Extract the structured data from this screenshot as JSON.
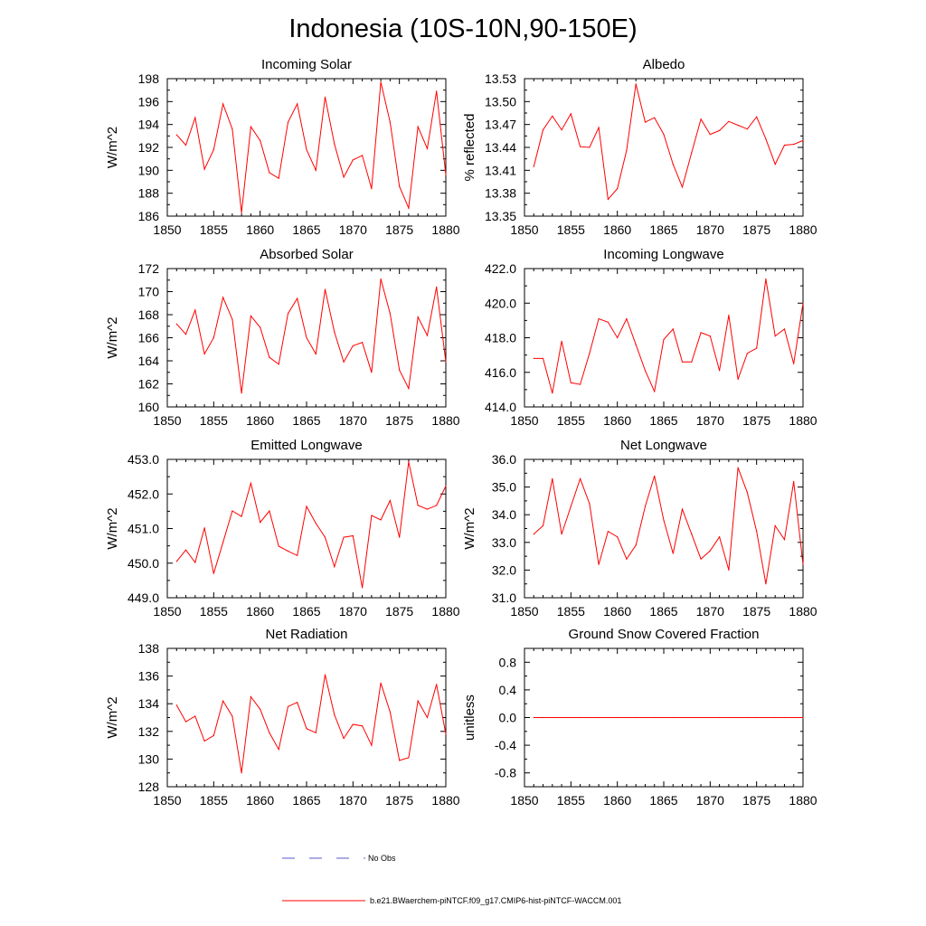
{
  "figure_title": "Indonesia (10S-10N,90-150E)",
  "legend": {
    "obs_label": "No Obs",
    "obs_color": "#5a5ad0",
    "model_label": "b.e21.BWaerchem-piNTCF.f09_g17.CMIP6-hist-piNTCF-WACCM.001",
    "model_color": "#ff0000"
  },
  "chart_data": [
    {
      "type": "line",
      "title": "Incoming Solar",
      "ylabel": "W/m^2",
      "xlim": [
        1850,
        1880
      ],
      "ylim": [
        186,
        198
      ],
      "xticks": [
        "1850",
        "1855",
        "1860",
        "1865",
        "1870",
        "1875",
        "1880"
      ],
      "yticks": [
        "186",
        "188",
        "190",
        "192",
        "194",
        "196",
        "198"
      ],
      "series": [
        {
          "color": "#ff0000",
          "x": [
            1851,
            1852,
            1853,
            1854,
            1855,
            1856,
            1857,
            1858,
            1859,
            1860,
            1861,
            1862,
            1863,
            1864,
            1865,
            1866,
            1867,
            1868,
            1869,
            1870,
            1871,
            1872,
            1873,
            1874,
            1875,
            1876,
            1877,
            1878,
            1879,
            1880
          ],
          "values": [
            193.1,
            192.2,
            194.6,
            190.1,
            191.8,
            195.8,
            193.6,
            186.3,
            193.8,
            192.6,
            189.8,
            189.3,
            194.2,
            195.8,
            191.8,
            190.0,
            196.4,
            192.3,
            189.4,
            190.9,
            191.3,
            188.4,
            197.7,
            194.2,
            188.6,
            186.7,
            193.8,
            191.9,
            196.9,
            189.6
          ]
        }
      ]
    },
    {
      "type": "line",
      "title": "Albedo",
      "ylabel": "% reflected",
      "xlim": [
        1850,
        1880
      ],
      "ylim": [
        13.35,
        13.53
      ],
      "xticks": [
        "1850",
        "1855",
        "1860",
        "1865",
        "1870",
        "1875",
        "1880"
      ],
      "yticks": [
        "13.35",
        "13.38",
        "13.41",
        "13.44",
        "13.47",
        "13.50",
        "13.53"
      ],
      "series": [
        {
          "color": "#ff0000",
          "x": [
            1851,
            1852,
            1853,
            1854,
            1855,
            1856,
            1857,
            1858,
            1859,
            1860,
            1861,
            1862,
            1863,
            1864,
            1865,
            1866,
            1867,
            1868,
            1869,
            1870,
            1871,
            1872,
            1873,
            1874,
            1875,
            1876,
            1877,
            1878,
            1879,
            1880
          ],
          "values": [
            13.415,
            13.463,
            13.481,
            13.463,
            13.484,
            13.441,
            13.44,
            13.466,
            13.372,
            13.386,
            13.436,
            13.523,
            13.473,
            13.479,
            13.457,
            13.418,
            13.388,
            13.433,
            13.477,
            13.457,
            13.462,
            13.474,
            13.469,
            13.464,
            13.48,
            13.451,
            13.418,
            13.443,
            13.444,
            13.449
          ]
        }
      ]
    },
    {
      "type": "line",
      "title": "Absorbed Solar",
      "ylabel": "W/m^2",
      "xlim": [
        1850,
        1880
      ],
      "ylim": [
        160,
        172
      ],
      "xticks": [
        "1850",
        "1855",
        "1860",
        "1865",
        "1870",
        "1875",
        "1880"
      ],
      "yticks": [
        "160",
        "162",
        "164",
        "166",
        "168",
        "170",
        "172"
      ],
      "series": [
        {
          "color": "#ff0000",
          "x": [
            1851,
            1852,
            1853,
            1854,
            1855,
            1856,
            1857,
            1858,
            1859,
            1860,
            1861,
            1862,
            1863,
            1864,
            1865,
            1866,
            1867,
            1868,
            1869,
            1870,
            1871,
            1872,
            1873,
            1874,
            1875,
            1876,
            1877,
            1878,
            1879,
            1880
          ],
          "values": [
            167.2,
            166.3,
            168.4,
            164.6,
            166.0,
            169.5,
            167.6,
            161.2,
            167.9,
            166.9,
            164.3,
            163.7,
            168.1,
            169.4,
            166.0,
            164.6,
            170.2,
            166.5,
            163.9,
            165.3,
            165.6,
            163.0,
            171.1,
            168.1,
            163.2,
            161.6,
            167.8,
            166.2,
            170.4,
            163.9
          ]
        }
      ]
    },
    {
      "type": "line",
      "title": "Incoming Longwave",
      "ylabel": "",
      "xlim": [
        1850,
        1880
      ],
      "ylim": [
        414.0,
        422.0
      ],
      "xticks": [
        "1850",
        "1855",
        "1860",
        "1865",
        "1870",
        "1875",
        "1880"
      ],
      "yticks": [
        "414.0",
        "416.0",
        "418.0",
        "420.0",
        "422.0"
      ],
      "series": [
        {
          "color": "#ff0000",
          "x": [
            1851,
            1852,
            1853,
            1854,
            1855,
            1856,
            1857,
            1858,
            1859,
            1860,
            1861,
            1862,
            1863,
            1864,
            1865,
            1866,
            1867,
            1868,
            1869,
            1870,
            1871,
            1872,
            1873,
            1874,
            1875,
            1876,
            1877,
            1878,
            1879,
            1880
          ],
          "values": [
            416.8,
            416.8,
            414.8,
            417.8,
            415.4,
            415.3,
            417.1,
            419.1,
            418.9,
            418.0,
            419.1,
            417.6,
            416.1,
            414.9,
            417.9,
            418.5,
            416.6,
            416.6,
            418.3,
            418.1,
            416.1,
            419.3,
            415.6,
            417.1,
            417.4,
            421.4,
            418.1,
            418.5,
            416.5,
            420.0
          ]
        }
      ]
    },
    {
      "type": "line",
      "title": "Emitted Longwave",
      "ylabel": "W/m^2",
      "xlim": [
        1850,
        1880
      ],
      "ylim": [
        449.0,
        453.0
      ],
      "xticks": [
        "1850",
        "1855",
        "1860",
        "1865",
        "1870",
        "1875",
        "1880"
      ],
      "yticks": [
        "449.0",
        "450.0",
        "451.0",
        "452.0",
        "453.0"
      ],
      "series": [
        {
          "color": "#ff0000",
          "x": [
            1851,
            1852,
            1853,
            1854,
            1855,
            1856,
            1857,
            1858,
            1859,
            1860,
            1861,
            1862,
            1863,
            1864,
            1865,
            1866,
            1867,
            1868,
            1869,
            1870,
            1871,
            1872,
            1873,
            1874,
            1875,
            1876,
            1877,
            1878,
            1879,
            1880
          ],
          "values": [
            450.05,
            450.38,
            450.02,
            451.02,
            449.7,
            450.6,
            451.51,
            451.35,
            452.31,
            451.18,
            451.51,
            450.49,
            450.35,
            450.22,
            451.64,
            451.15,
            450.75,
            449.9,
            450.75,
            450.79,
            449.29,
            451.38,
            451.25,
            451.81,
            450.75,
            452.93,
            451.67,
            451.56,
            451.67,
            452.23
          ]
        }
      ]
    },
    {
      "type": "line",
      "title": "Net Longwave",
      "ylabel": "W/m^2",
      "xlim": [
        1850,
        1880
      ],
      "ylim": [
        31.0,
        36.0
      ],
      "xticks": [
        "1850",
        "1855",
        "1860",
        "1865",
        "1870",
        "1875",
        "1880"
      ],
      "yticks": [
        "31.0",
        "32.0",
        "33.0",
        "34.0",
        "35.0",
        "36.0"
      ],
      "series": [
        {
          "color": "#ff0000",
          "x": [
            1851,
            1852,
            1853,
            1854,
            1855,
            1856,
            1857,
            1858,
            1859,
            1860,
            1861,
            1862,
            1863,
            1864,
            1865,
            1866,
            1867,
            1868,
            1869,
            1870,
            1871,
            1872,
            1873,
            1874,
            1875,
            1876,
            1877,
            1878,
            1879,
            1880
          ],
          "values": [
            33.3,
            33.6,
            35.3,
            33.3,
            34.3,
            35.3,
            34.4,
            32.2,
            33.4,
            33.2,
            32.4,
            32.9,
            34.3,
            35.4,
            33.8,
            32.6,
            34.2,
            33.3,
            32.4,
            32.7,
            33.2,
            32.0,
            35.7,
            34.8,
            33.4,
            31.5,
            33.6,
            33.1,
            35.2,
            32.2
          ]
        }
      ]
    },
    {
      "type": "line",
      "title": "Net Radiation",
      "ylabel": "W/m^2",
      "xlim": [
        1850,
        1880
      ],
      "ylim": [
        128,
        138
      ],
      "xticks": [
        "1850",
        "1855",
        "1860",
        "1865",
        "1870",
        "1875",
        "1880"
      ],
      "yticks": [
        "128",
        "130",
        "132",
        "134",
        "136",
        "138"
      ],
      "series": [
        {
          "color": "#ff0000",
          "x": [
            1851,
            1852,
            1853,
            1854,
            1855,
            1856,
            1857,
            1858,
            1859,
            1860,
            1861,
            1862,
            1863,
            1864,
            1865,
            1866,
            1867,
            1868,
            1869,
            1870,
            1871,
            1872,
            1873,
            1874,
            1875,
            1876,
            1877,
            1878,
            1879,
            1880
          ],
          "values": [
            133.9,
            132.7,
            133.1,
            131.3,
            131.7,
            134.2,
            133.1,
            129.0,
            134.5,
            133.6,
            131.9,
            130.7,
            133.8,
            134.1,
            132.2,
            131.9,
            136.1,
            133.2,
            131.5,
            132.5,
            132.4,
            131.0,
            135.5,
            133.4,
            129.9,
            130.1,
            134.2,
            133.0,
            135.4,
            131.8
          ]
        }
      ]
    },
    {
      "type": "line",
      "title": "Ground Snow Covered Fraction",
      "ylabel": "unitless",
      "xlim": [
        1850,
        1880
      ],
      "ylim": [
        -1.0,
        1.0
      ],
      "xticks": [
        "1850",
        "1855",
        "1860",
        "1865",
        "1870",
        "1875",
        "1880"
      ],
      "yticks": [
        "-0.8",
        "-0.4",
        "0.0",
        "0.4",
        "0.8"
      ],
      "series": [
        {
          "color": "#ff0000",
          "x": [
            1851,
            1852,
            1853,
            1854,
            1855,
            1856,
            1857,
            1858,
            1859,
            1860,
            1861,
            1862,
            1863,
            1864,
            1865,
            1866,
            1867,
            1868,
            1869,
            1870,
            1871,
            1872,
            1873,
            1874,
            1875,
            1876,
            1877,
            1878,
            1879,
            1880
          ],
          "values": [
            0,
            0,
            0,
            0,
            0,
            0,
            0,
            0,
            0,
            0,
            0,
            0,
            0,
            0,
            0,
            0,
            0,
            0,
            0,
            0,
            0,
            0,
            0,
            0,
            0,
            0,
            0,
            0,
            0,
            0
          ]
        }
      ]
    }
  ]
}
